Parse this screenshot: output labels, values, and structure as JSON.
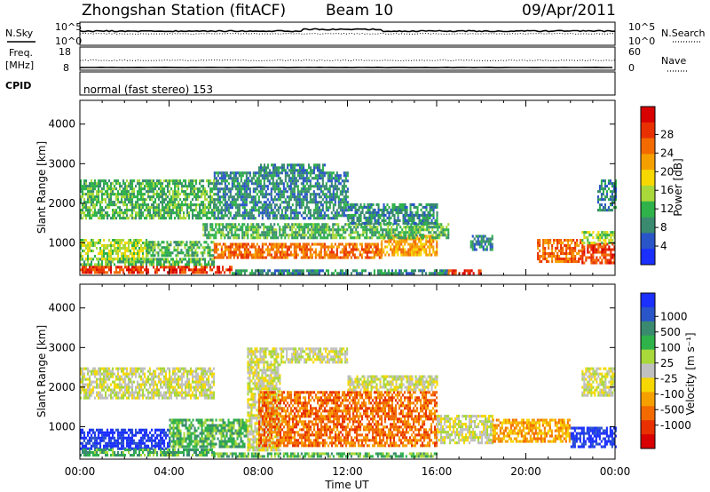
{
  "header": {
    "station": "Zhongshan Station (fitACF)",
    "beam": "Beam 10",
    "date": "09/Apr/2011"
  },
  "strip_panels": {
    "nsky": {
      "left_label": "N.Sky",
      "left_ticks": [
        "10^5",
        "10^0"
      ],
      "right_ticks": [
        "10^5",
        "10^0"
      ],
      "right_label": "N.Search"
    },
    "freq": {
      "left_label_line1": "Freq.",
      "left_label_line2": "[MHz]",
      "left_ticks": [
        "18",
        "8"
      ],
      "right_ticks": [
        "60",
        "0"
      ],
      "right_label": "Nave"
    },
    "cpid": {
      "label": "CPID",
      "text": "normal (fast stereo) 153"
    }
  },
  "chart_data": [
    {
      "type": "heatmap",
      "title": "",
      "xlabel": "",
      "ylabel": "Slant Range [km]",
      "xlim": [
        0,
        24
      ],
      "ylim": [
        180,
        4600
      ],
      "y_ticks": [
        "1000",
        "2000",
        "3000",
        "4000"
      ],
      "colorbar": {
        "label": "Power [dB]",
        "ticks": [
          "4",
          "8",
          "12",
          "16",
          "20",
          "24",
          "28"
        ],
        "colors": [
          "#1b2fff",
          "#2a55c8",
          "#3a8a70",
          "#2fb24a",
          "#a8d83a",
          "#f6d800",
          "#f6a000",
          "#f26a00",
          "#e83000",
          "#d80000"
        ]
      },
      "regions": [
        {
          "t0": 0.0,
          "t1": 6.8,
          "r0": 250,
          "r1": 420,
          "db": 27
        },
        {
          "t0": 6.8,
          "t1": 16.5,
          "r0": 230,
          "r1": 330,
          "db": 8
        },
        {
          "t0": 16.5,
          "t1": 18.0,
          "r0": 230,
          "r1": 330,
          "db": 28
        },
        {
          "t0": 0.0,
          "t1": 6.0,
          "r0": 430,
          "r1": 620,
          "db": 12
        },
        {
          "t0": 0.0,
          "t1": 3.0,
          "r0": 620,
          "r1": 1100,
          "db": 16
        },
        {
          "t0": 3.0,
          "t1": 6.0,
          "r0": 650,
          "r1": 1050,
          "db": 12
        },
        {
          "t0": 6.0,
          "t1": 13.5,
          "r0": 600,
          "r1": 1000,
          "db": 24
        },
        {
          "t0": 13.5,
          "t1": 16.0,
          "r0": 700,
          "r1": 1200,
          "db": 20
        },
        {
          "t0": 5.5,
          "t1": 16.5,
          "r0": 1150,
          "r1": 1500,
          "db": 12
        },
        {
          "t0": 0.0,
          "t1": 6.0,
          "r0": 1600,
          "r1": 2600,
          "db": 12
        },
        {
          "t0": 6.0,
          "t1": 12.0,
          "r0": 1600,
          "r1": 2800,
          "db": 8
        },
        {
          "t0": 8.0,
          "t1": 11.0,
          "r0": 2800,
          "r1": 3000,
          "db": 8
        },
        {
          "t0": 12.0,
          "t1": 16.0,
          "r0": 1500,
          "r1": 2000,
          "db": 8
        },
        {
          "t0": 17.5,
          "t1": 18.5,
          "r0": 800,
          "r1": 1200,
          "db": 8
        },
        {
          "t0": 20.5,
          "t1": 22.5,
          "r0": 550,
          "r1": 1100,
          "db": 24
        },
        {
          "t0": 22.5,
          "t1": 24.0,
          "r0": 500,
          "r1": 1000,
          "db": 28
        },
        {
          "t0": 22.5,
          "t1": 24.0,
          "r0": 1000,
          "r1": 1300,
          "db": 16
        },
        {
          "t0": 23.2,
          "t1": 24.0,
          "r0": 1800,
          "r1": 2600,
          "db": 8
        }
      ]
    },
    {
      "type": "heatmap",
      "title": "",
      "xlabel": "Time UT",
      "ylabel": "Slant Range [km]",
      "xlim": [
        0,
        24
      ],
      "ylim": [
        180,
        4600
      ],
      "x_ticks": [
        "00:00",
        "04:00",
        "08:00",
        "12:00",
        "16:00",
        "20:00",
        "00:00"
      ],
      "y_ticks": [
        "1000",
        "2000",
        "3000",
        "4000"
      ],
      "colorbar": {
        "label": "Velocity [m s⁻¹]",
        "ticks": [
          "1000",
          "500",
          "100",
          "25",
          "-25",
          "-100",
          "-500",
          "-1000"
        ],
        "colors": [
          "#1b2fff",
          "#2a55c8",
          "#3a8a70",
          "#2fb24a",
          "#a8d83a",
          "#c0c0c0",
          "#f6d800",
          "#f6a000",
          "#f26a00",
          "#e83000",
          "#d80000"
        ]
      },
      "regions": [
        {
          "t0": 0.0,
          "t1": 4.0,
          "r0": 450,
          "r1": 950,
          "v": 1000
        },
        {
          "t0": 0.0,
          "t1": 6.0,
          "r0": 250,
          "r1": 450,
          "v": 100
        },
        {
          "t0": 6.0,
          "t1": 16.0,
          "r0": 230,
          "r1": 350,
          "v": 60
        },
        {
          "t0": 0.0,
          "t1": 6.0,
          "r0": 1700,
          "r1": 2500,
          "v": 0
        },
        {
          "t0": 4.0,
          "t1": 7.5,
          "r0": 500,
          "r1": 1200,
          "v": 100
        },
        {
          "t0": 7.5,
          "t1": 9.0,
          "r0": 400,
          "r1": 3000,
          "v": 0
        },
        {
          "t0": 9.0,
          "t1": 12.0,
          "r0": 2600,
          "r1": 3000,
          "v": 0
        },
        {
          "t0": 8.0,
          "t1": 16.0,
          "r0": 550,
          "r1": 1900,
          "v": -300
        },
        {
          "t0": 12.0,
          "t1": 16.0,
          "r0": 1900,
          "r1": 2300,
          "v": 0
        },
        {
          "t0": 16.0,
          "t1": 18.5,
          "r0": 600,
          "r1": 1300,
          "v": 0
        },
        {
          "t0": 18.5,
          "t1": 22.0,
          "r0": 600,
          "r1": 1200,
          "v": -200
        },
        {
          "t0": 22.0,
          "t1": 24.0,
          "r0": 500,
          "r1": 1000,
          "v": 1000
        },
        {
          "t0": 22.5,
          "t1": 24.0,
          "r0": 1800,
          "r1": 2500,
          "v": 0
        }
      ]
    }
  ]
}
